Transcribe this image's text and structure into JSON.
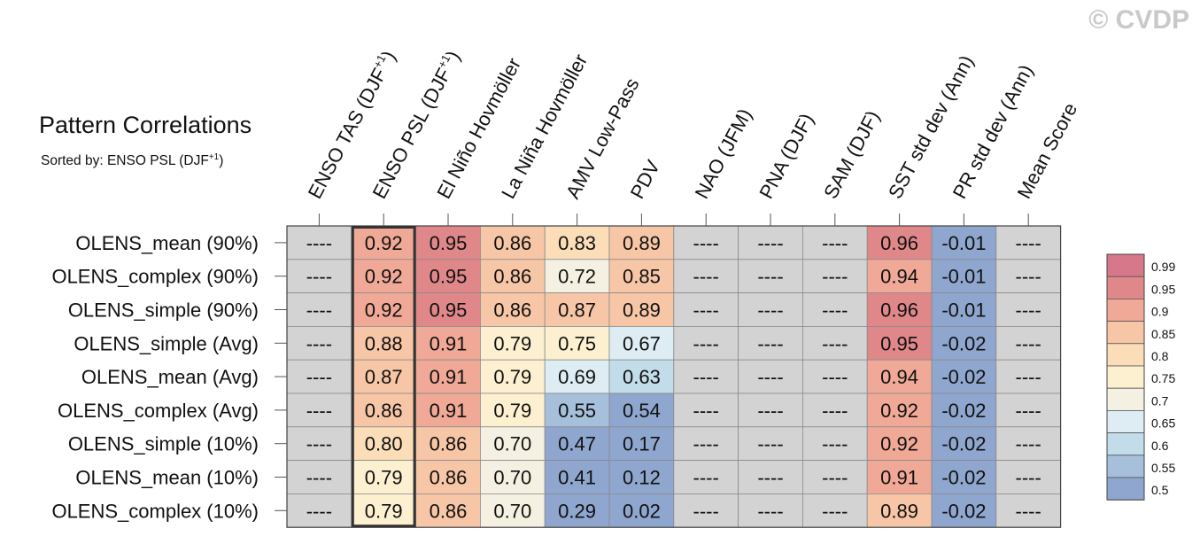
{
  "watermark": "© CVDP",
  "title": "Pattern Correlations",
  "subtitle": {
    "prefix": "Sorted by: ",
    "metric": "ENSO PSL (DJF",
    "sup": "+1",
    "suffix": ")"
  },
  "chart_data": {
    "type": "heatmap",
    "columns": [
      {
        "label": "ENSO TAS (DJF",
        "sup": "+1",
        "after": ")"
      },
      {
        "label": "ENSO PSL (DJF",
        "sup": "+1",
        "after": ")"
      },
      {
        "label": "El Niño Hovmöller"
      },
      {
        "label": "La Niña Hovmöller"
      },
      {
        "label": "AMV Low-Pass"
      },
      {
        "label": "PDV"
      },
      {
        "label": "NAO (JFM)"
      },
      {
        "label": "PNA (DJF)"
      },
      {
        "label": "SAM (DJF)"
      },
      {
        "label": "SST std dev (Ann)"
      },
      {
        "label": "PR std dev (Ann)"
      },
      {
        "label": "Mean Score"
      }
    ],
    "rows": [
      "OLENS_mean (90%)",
      "OLENS_complex (90%)",
      "OLENS_simple (90%)",
      "OLENS_simple (Avg)",
      "OLENS_mean (Avg)",
      "OLENS_complex (Avg)",
      "OLENS_simple (10%)",
      "OLENS_mean (10%)",
      "OLENS_complex (10%)"
    ],
    "values": [
      [
        "----",
        "0.92",
        "0.95",
        "0.86",
        "0.83",
        "0.89",
        "----",
        "----",
        "----",
        "0.96",
        "-0.01",
        "----"
      ],
      [
        "----",
        "0.92",
        "0.95",
        "0.86",
        "0.72",
        "0.85",
        "----",
        "----",
        "----",
        "0.94",
        "-0.01",
        "----"
      ],
      [
        "----",
        "0.92",
        "0.95",
        "0.86",
        "0.87",
        "0.89",
        "----",
        "----",
        "----",
        "0.96",
        "-0.01",
        "----"
      ],
      [
        "----",
        "0.88",
        "0.91",
        "0.79",
        "0.75",
        "0.67",
        "----",
        "----",
        "----",
        "0.95",
        "-0.02",
        "----"
      ],
      [
        "----",
        "0.87",
        "0.91",
        "0.79",
        "0.69",
        "0.63",
        "----",
        "----",
        "----",
        "0.94",
        "-0.02",
        "----"
      ],
      [
        "----",
        "0.86",
        "0.91",
        "0.79",
        "0.55",
        "0.54",
        "----",
        "----",
        "----",
        "0.92",
        "-0.02",
        "----"
      ],
      [
        "----",
        "0.80",
        "0.86",
        "0.70",
        "0.47",
        "0.17",
        "----",
        "----",
        "----",
        "0.92",
        "-0.02",
        "----"
      ],
      [
        "----",
        "0.79",
        "0.86",
        "0.70",
        "0.41",
        "0.12",
        "----",
        "----",
        "----",
        "0.91",
        "-0.02",
        "----"
      ],
      [
        "----",
        "0.79",
        "0.86",
        "0.70",
        "0.29",
        "0.02",
        "----",
        "----",
        "----",
        "0.89",
        "-0.02",
        "----"
      ]
    ],
    "highlighted_column": "ENSO PSL (DJF+1)",
    "missing_color": "#d3d3d3",
    "colorbar": {
      "ticks": [
        "0.99",
        "0.95",
        "0.9",
        "0.85",
        "0.8",
        "0.75",
        "0.7",
        "0.65",
        "0.6",
        "0.55",
        "0.5"
      ],
      "colors": [
        "#d6788a",
        "#e0878a",
        "#f0a996",
        "#f7c6a6",
        "#fbddb8",
        "#fdf0d0",
        "#f4f1e2",
        "#ddedf3",
        "#c2dcea",
        "#a6c0dc",
        "#8fa6cf"
      ]
    }
  }
}
